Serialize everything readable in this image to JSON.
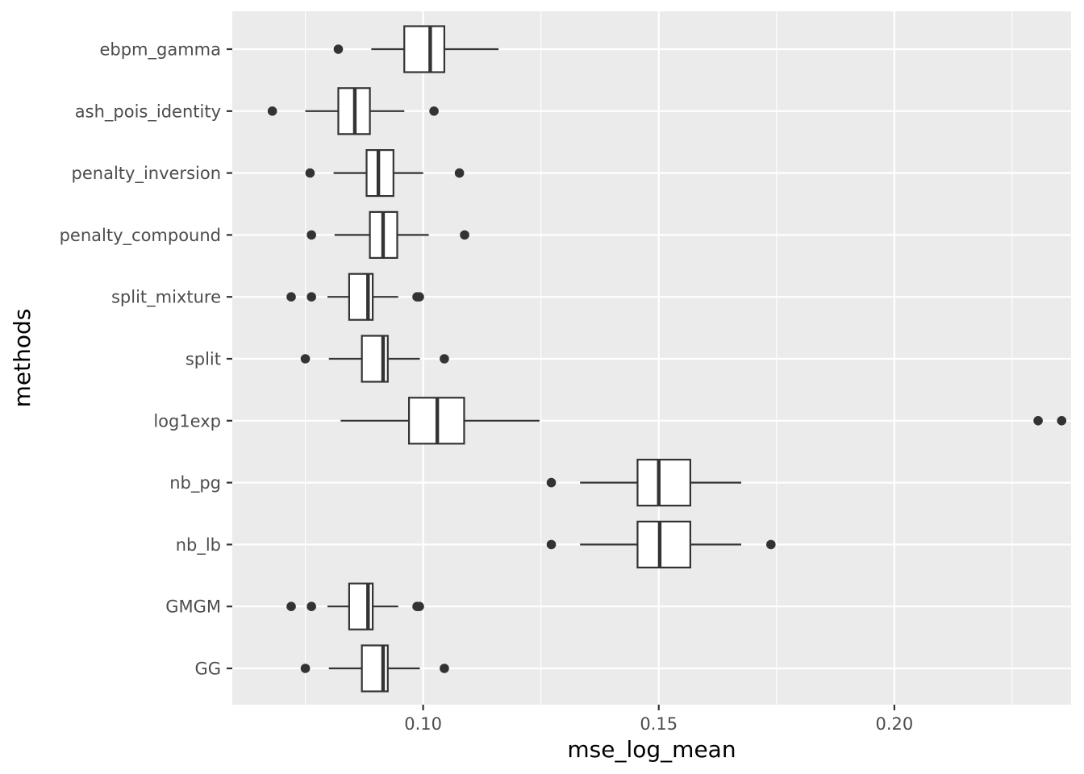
{
  "chart_data": {
    "type": "boxplot",
    "orientation": "horizontal",
    "xlabel": "mse_log_mean",
    "ylabel": "methods",
    "xlim": [
      0.0595,
      0.2375
    ],
    "x_ticks": [
      0.1,
      0.15,
      0.2
    ],
    "x_tick_labels": [
      "0.10",
      "0.15",
      "0.20"
    ],
    "grid": true,
    "colors": {
      "panel_bg": "#ebebeb",
      "grid_major": "#ffffff",
      "box_fill": "#ffffff",
      "box_stroke": "#333333",
      "outlier": "#333333",
      "tick_text": "#4d4d4d",
      "title_text": "#000000"
    },
    "categories": [
      "ebpm_gamma",
      "ash_pois_identity",
      "penalty_inversion",
      "penalty_compound",
      "split_mixture",
      "split",
      "log1exp",
      "nb_pg",
      "nb_lb",
      "GMGM",
      "GG"
    ],
    "boxes": [
      {
        "name": "ebpm_gamma",
        "whisker_low": 0.089,
        "q1": 0.096,
        "median": 0.1015,
        "q3": 0.1045,
        "whisker_high": 0.116,
        "outliers": [
          0.082
        ]
      },
      {
        "name": "ash_pois_identity",
        "whisker_low": 0.075,
        "q1": 0.082,
        "median": 0.0855,
        "q3": 0.0887,
        "whisker_high": 0.096,
        "outliers": [
          0.068,
          0.1023
        ]
      },
      {
        "name": "penalty_inversion",
        "whisker_low": 0.081,
        "q1": 0.088,
        "median": 0.0905,
        "q3": 0.0937,
        "whisker_high": 0.1,
        "outliers": [
          0.076,
          0.1077
        ]
      },
      {
        "name": "penalty_compound",
        "whisker_low": 0.0812,
        "q1": 0.0887,
        "median": 0.0915,
        "q3": 0.0945,
        "whisker_high": 0.1012,
        "outliers": [
          0.0763,
          0.1088
        ]
      },
      {
        "name": "split_mixture",
        "whisker_low": 0.0797,
        "q1": 0.0843,
        "median": 0.0883,
        "q3": 0.0893,
        "whisker_high": 0.0947,
        "outliers": [
          0.072,
          0.0763,
          0.0987,
          0.0992
        ]
      },
      {
        "name": "split",
        "whisker_low": 0.08,
        "q1": 0.087,
        "median": 0.0915,
        "q3": 0.0925,
        "whisker_high": 0.0993,
        "outliers": [
          0.075,
          0.1045
        ]
      },
      {
        "name": "log1exp",
        "whisker_low": 0.0825,
        "q1": 0.097,
        "median": 0.103,
        "q3": 0.1087,
        "whisker_high": 0.1247,
        "outliers": [
          0.2305,
          0.2355
        ]
      },
      {
        "name": "nb_pg",
        "whisker_low": 0.1333,
        "q1": 0.1455,
        "median": 0.15,
        "q3": 0.1567,
        "whisker_high": 0.1675,
        "outliers": [
          0.1272
        ]
      },
      {
        "name": "nb_lb",
        "whisker_low": 0.1333,
        "q1": 0.1455,
        "median": 0.1502,
        "q3": 0.1567,
        "whisker_high": 0.1675,
        "outliers": [
          0.1272,
          0.1738
        ]
      },
      {
        "name": "GMGM",
        "whisker_low": 0.0797,
        "q1": 0.0843,
        "median": 0.0883,
        "q3": 0.0893,
        "whisker_high": 0.0947,
        "outliers": [
          0.072,
          0.0763,
          0.0987,
          0.0992
        ]
      },
      {
        "name": "GG",
        "whisker_low": 0.08,
        "q1": 0.087,
        "median": 0.0915,
        "q3": 0.0925,
        "whisker_high": 0.0993,
        "outliers": [
          0.075,
          0.1045
        ]
      }
    ]
  }
}
